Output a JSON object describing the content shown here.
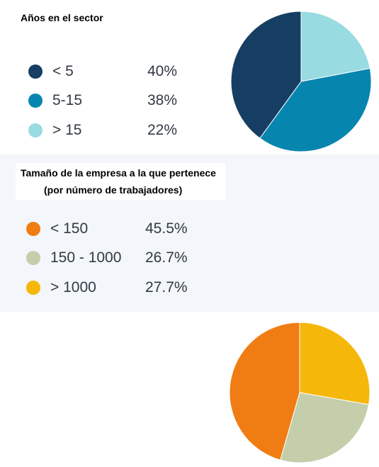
{
  "chart_data": [
    {
      "type": "pie",
      "title": "Años en el sector",
      "categories": [
        "< 5",
        "5-15",
        "> 15"
      ],
      "value_labels": [
        "40%",
        "38%",
        "22%"
      ],
      "values": [
        40,
        38,
        22
      ],
      "colors": [
        "#163e62",
        "#0686ae",
        "#98dbe1"
      ],
      "legend": "left"
    },
    {
      "type": "pie",
      "title": [
        "Tamaño de la empresa a la que pertenece",
        "(por número de trabajadores)"
      ],
      "categories": [
        "< 150",
        "150 - 1000",
        "> 1000"
      ],
      "value_labels": [
        "45.5%",
        "26.7%",
        "27.7%"
      ],
      "values": [
        45.5,
        26.7,
        27.7
      ],
      "colors": [
        "#f07d13",
        "#c4ceab",
        "#f6b70b"
      ],
      "legend": "left"
    }
  ]
}
